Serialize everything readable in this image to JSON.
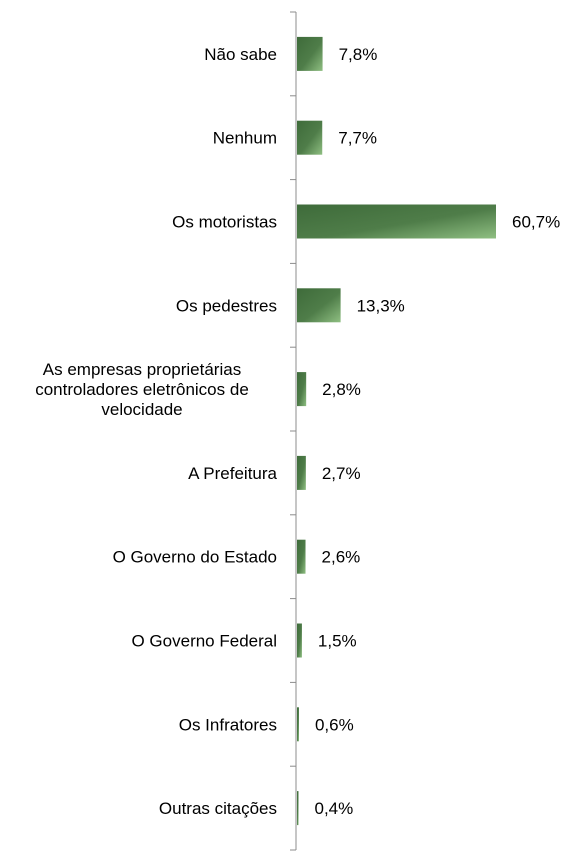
{
  "chart_data": {
    "type": "bar",
    "orientation": "horizontal",
    "categories": [
      "Não sabe",
      "Nenhum",
      "Os motoristas",
      "Os pedestres",
      "As empresas proprietárias controladores eletrônicos de velocidade",
      "A Prefeitura",
      "O Governo do Estado",
      "O Governo Federal",
      "Os Infratores",
      "Outras citações"
    ],
    "category_lines": [
      [
        "Não sabe"
      ],
      [
        "Nenhum"
      ],
      [
        "Os motoristas"
      ],
      [
        "Os pedestres"
      ],
      [
        "As empresas proprietárias",
        "controladores eletrônicos de",
        "velocidade"
      ],
      [
        "A Prefeitura"
      ],
      [
        "O Governo do Estado"
      ],
      [
        "O Governo Federal"
      ],
      [
        "Os Infratores"
      ],
      [
        "Outras citações"
      ]
    ],
    "values": [
      7.8,
      7.7,
      60.7,
      13.3,
      2.8,
      2.7,
      2.6,
      1.5,
      0.6,
      0.4
    ],
    "value_labels": [
      "7,8%",
      "7,7%",
      "60,7%",
      "13,3%",
      "2,8%",
      "2,7%",
      "2,6%",
      "1,5%",
      "0,6%",
      "0,4%"
    ],
    "bar_color": "#3e6b3a",
    "bar_highlight_color": "#8fbf82",
    "axis_color": "#8c8c8c",
    "grid": false,
    "legend": false
  }
}
